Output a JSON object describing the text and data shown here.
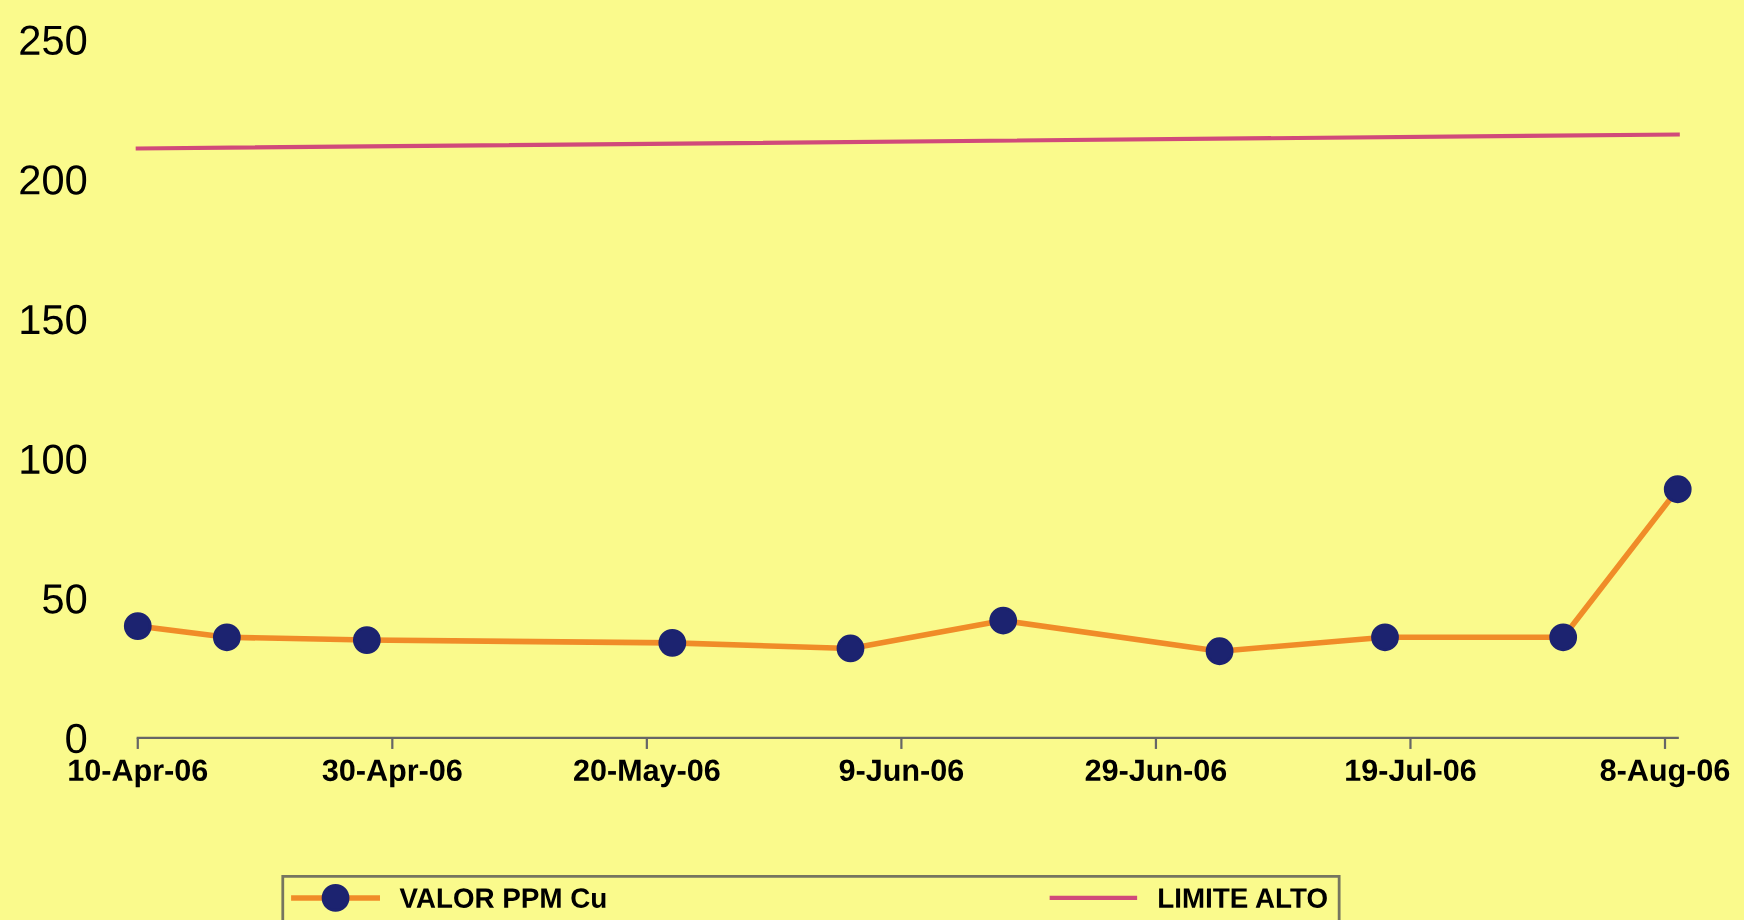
{
  "chart_data": {
    "type": "line",
    "xlim": [
      "2006-04-10",
      "2006-08-09"
    ],
    "xticks": [
      {
        "value": "2006-04-10",
        "label": "10-Apr-06"
      },
      {
        "value": "2006-04-30",
        "label": "30-Apr-06"
      },
      {
        "value": "2006-05-20",
        "label": "20-May-06"
      },
      {
        "value": "2006-06-09",
        "label": "9-Jun-06"
      },
      {
        "value": "2006-06-29",
        "label": "29-Jun-06"
      },
      {
        "value": "2006-07-19",
        "label": "19-Jul-06"
      },
      {
        "value": "2006-08-08",
        "label": "8-Aug-06"
      }
    ],
    "ylim": [
      0,
      250
    ],
    "yticks": [
      0,
      50,
      100,
      150,
      200,
      250
    ],
    "grid": false,
    "legend": "bottom",
    "series": [
      {
        "name": "VALOR PPM Cu",
        "color": "#f08c28",
        "marker": "circle",
        "x": [
          "2006-04-10",
          "2006-04-17",
          "2006-04-28",
          "2006-05-22",
          "2006-06-05",
          "2006-06-17",
          "2006-07-04",
          "2006-07-17",
          "2006-07-31",
          "2006-08-09"
        ],
        "values": [
          40,
          36,
          35,
          34,
          32,
          42,
          31,
          36,
          36,
          89
        ]
      },
      {
        "name": "LIMITE ALTO",
        "color": "#d04a7a",
        "marker": "none",
        "x": [
          "2006-04-10",
          "2006-08-09"
        ],
        "values": [
          211,
          216
        ]
      }
    ]
  }
}
